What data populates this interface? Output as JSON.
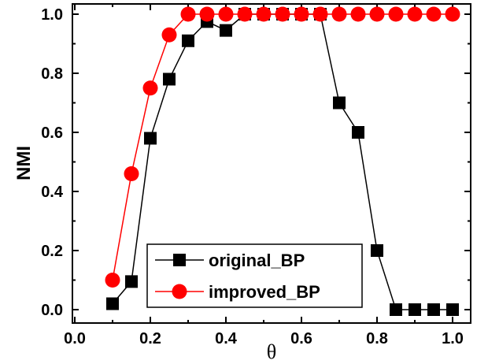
{
  "chart_data": {
    "type": "line",
    "xlabel": "θ",
    "ylabel": "NMI",
    "xlim": [
      0.0,
      1.0
    ],
    "ylim": [
      0.0,
      1.0
    ],
    "xticks": [
      "0.0",
      "0.2",
      "0.4",
      "0.6",
      "0.8",
      "1.0"
    ],
    "yticks": [
      "0.0",
      "0.2",
      "0.4",
      "0.6",
      "0.8",
      "1.0"
    ],
    "grid": false,
    "legend_position": "bottom-center",
    "series": [
      {
        "name": "original_BP",
        "color": "#000000",
        "marker": "square",
        "x": [
          0.1,
          0.15,
          0.2,
          0.25,
          0.3,
          0.35,
          0.4,
          0.45,
          0.5,
          0.55,
          0.6,
          0.65,
          0.7,
          0.75,
          0.8,
          0.85,
          0.9,
          0.95,
          1.0
        ],
        "y": [
          0.02,
          0.095,
          0.58,
          0.78,
          0.91,
          0.975,
          0.945,
          1.0,
          1.0,
          1.0,
          1.0,
          1.0,
          0.7,
          0.6,
          0.2,
          0.0,
          0.0,
          0.0,
          0.0
        ]
      },
      {
        "name": "improved_BP",
        "color": "#ff0000",
        "marker": "circle",
        "x": [
          0.1,
          0.15,
          0.2,
          0.25,
          0.3,
          0.35,
          0.4,
          0.45,
          0.5,
          0.55,
          0.6,
          0.65,
          0.7,
          0.75,
          0.8,
          0.85,
          0.9,
          0.95,
          1.0
        ],
        "y": [
          0.1,
          0.46,
          0.75,
          0.93,
          1.0,
          1.0,
          1.0,
          1.0,
          1.0,
          1.0,
          1.0,
          1.0,
          1.0,
          1.0,
          1.0,
          1.0,
          1.0,
          1.0,
          1.0
        ]
      }
    ]
  }
}
